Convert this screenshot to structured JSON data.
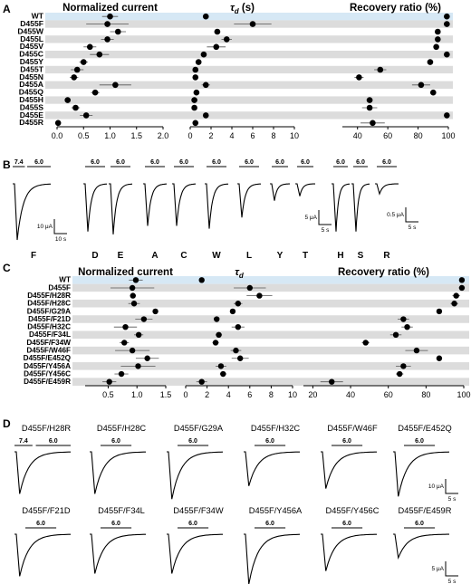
{
  "chart_data": [
    {
      "panel": "A",
      "type": "scatter",
      "categories": [
        "WT",
        "D455F",
        "D455W",
        "D455L",
        "D455V",
        "D455C",
        "D455Y",
        "D455T",
        "D455N",
        "D455A",
        "D455Q",
        "D455H",
        "D455S",
        "D455E",
        "D455R"
      ],
      "subplots": [
        {
          "title": "Normalized current",
          "xlim": [
            0,
            2
          ],
          "ticks": [
            "0.0",
            "0.5",
            "1.0",
            "1.5",
            "2.0"
          ],
          "values": [
            1.0,
            0.95,
            1.15,
            0.95,
            0.62,
            0.8,
            0.5,
            0.38,
            0.32,
            1.1,
            0.72,
            0.2,
            0.35,
            0.55,
            0.02
          ],
          "errors": [
            0.15,
            0.4,
            0.15,
            0.12,
            0.12,
            0.18,
            0.08,
            0.12,
            0.08,
            0.3,
            0.08,
            0.05,
            0.08,
            0.12,
            0.02
          ]
        },
        {
          "title_prefix": "τ",
          "title_sub": "d",
          "title_unit": " (s)",
          "xlim": [
            0,
            10
          ],
          "ticks": [
            "0",
            "2",
            "4",
            "6",
            "8",
            "10"
          ],
          "values": [
            1.5,
            6.0,
            2.6,
            3.5,
            2.5,
            1.3,
            0.8,
            0.5,
            0.5,
            1.5,
            0.6,
            0.4,
            0.4,
            1.5,
            0.5
          ],
          "errors": [
            0.1,
            1.8,
            0.3,
            0.5,
            0.9,
            0.2,
            0.1,
            0.1,
            0.1,
            0.4,
            0.1,
            0.1,
            0.1,
            0.2,
            0.1
          ]
        },
        {
          "title": "Recovery ratio (%)",
          "xlim": [
            30,
            100
          ],
          "ticks": [
            "40",
            "60",
            "80",
            "100"
          ],
          "values": [
            99,
            99,
            93,
            93,
            92,
            99,
            88,
            55,
            41,
            82,
            90,
            48,
            48,
            99,
            50
          ],
          "errors": [
            0,
            0,
            1,
            1,
            1,
            0,
            0,
            4,
            3,
            6,
            1,
            2,
            5,
            0,
            8
          ]
        }
      ]
    },
    {
      "panel": "B",
      "type": "line",
      "protocol_labels": [
        "7.4",
        "6.0"
      ],
      "traces": [
        {
          "name": "F",
          "peak": 1.0
        },
        {
          "name": "D",
          "peak": 0.85
        },
        {
          "name": "E",
          "peak": 0.9
        },
        {
          "name": "A",
          "peak": 0.75
        },
        {
          "name": "C",
          "peak": 0.75
        },
        {
          "name": "W",
          "peak": 0.8
        },
        {
          "name": "L",
          "peak": 0.6
        },
        {
          "name": "Y",
          "peak": 0.3
        },
        {
          "name": "T",
          "peak": 0.22
        },
        {
          "name": "H",
          "peak": 0.85
        },
        {
          "name": "S",
          "peak": 0.85
        },
        {
          "name": "R",
          "peak": 0.18
        }
      ],
      "scale_bars": [
        {
          "amplitude": "10 μA",
          "time": "10 s"
        },
        {
          "amplitude": "5 μA",
          "time": "5 s"
        },
        {
          "amplitude": "0.5 μA",
          "time": "5 s"
        }
      ]
    },
    {
      "panel": "C",
      "type": "scatter",
      "categories": [
        "WT",
        "D455F",
        "D455F/H28R",
        "D455F/H28C",
        "D455F/G29A",
        "D455F/F21D",
        "D455F/H32C",
        "D455F/F34L",
        "D455F/F34W",
        "D455F/W46F",
        "D455F/E452Q",
        "D455F/Y456A",
        "D455F/Y456C",
        "D455F/E459R"
      ],
      "subplots": [
        {
          "title": "Normalized current",
          "xlim": [
            0.1,
            1.5
          ],
          "ticks": [
            "0.5",
            "1.0",
            "1.5"
          ],
          "values": [
            0.98,
            0.92,
            0.93,
            0.95,
            1.32,
            1.12,
            0.8,
            1.03,
            0.78,
            0.92,
            1.18,
            1.02,
            0.73,
            0.52
          ],
          "errors": [
            0.12,
            0.38,
            0.05,
            0.1,
            0.04,
            0.15,
            0.2,
            0.08,
            0.08,
            0.3,
            0.2,
            0.3,
            0.12,
            0.12
          ]
        },
        {
          "title_prefix": "τ",
          "title_sub": "d",
          "title_unit": "",
          "xlim": [
            0,
            10
          ],
          "ticks": [
            "0",
            "2",
            "4",
            "6",
            "8",
            "10"
          ],
          "values": [
            1.5,
            6.0,
            6.9,
            4.9,
            4.4,
            2.9,
            4.9,
            3.1,
            2.8,
            4.7,
            5.1,
            3.3,
            3.5,
            1.5
          ],
          "errors": [
            0.1,
            1.5,
            1.2,
            0.4,
            0.2,
            0.2,
            0.6,
            0.3,
            0.3,
            0.5,
            0.8,
            0.5,
            0.3,
            0.5
          ]
        },
        {
          "title": "Recovery ratio (%)",
          "xlim": [
            15,
            100
          ],
          "ticks": [
            "20",
            "40",
            "60",
            "80",
            "100"
          ],
          "values": [
            99,
            99,
            96,
            95,
            87,
            68,
            70,
            64,
            48,
            75,
            87,
            68,
            66,
            30
          ],
          "errors": [
            0,
            0,
            2,
            2,
            1,
            3,
            3,
            3,
            2,
            6,
            1,
            4,
            2,
            6
          ]
        }
      ]
    },
    {
      "panel": "D",
      "type": "line",
      "protocol_labels": [
        "7.4",
        "6.0"
      ],
      "traces": [
        {
          "name": "D455F/H28R",
          "peak": 0.8
        },
        {
          "name": "D455F/H28C",
          "peak": 0.8
        },
        {
          "name": "D455F/G29A",
          "peak": 0.9
        },
        {
          "name": "D455F/H32C",
          "peak": 0.65
        },
        {
          "name": "D455F/W46F",
          "peak": 0.7
        },
        {
          "name": "D455F/E452Q",
          "peak": 0.85
        },
        {
          "name": "D455F/F21D",
          "peak": 0.8
        },
        {
          "name": "D455F/F34L",
          "peak": 0.75
        },
        {
          "name": "D455F/F34W",
          "peak": 0.75
        },
        {
          "name": "D455F/Y456A",
          "peak": 0.95
        },
        {
          "name": "D455F/Y456C",
          "peak": 0.7
        },
        {
          "name": "D455F/E459R",
          "peak": 0.45
        }
      ],
      "scale_bars": [
        {
          "amplitude": "10 μA",
          "time": "5 s"
        },
        {
          "amplitude": "5 μA",
          "time": "5 s"
        }
      ]
    }
  ],
  "panel_letters": [
    "A",
    "B",
    "C",
    "D"
  ],
  "colors": {
    "band": "#dcdcdc",
    "wt_band": "#d6e8f5",
    "ink": "#000000"
  }
}
